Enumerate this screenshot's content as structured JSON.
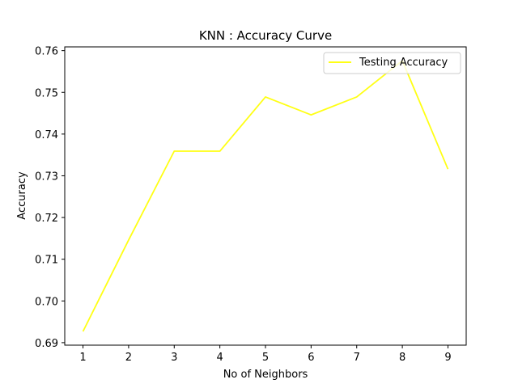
{
  "chart_data": {
    "type": "line",
    "title": "KNN : Accuracy Curve",
    "xlabel": "No of Neighbors",
    "ylabel": "Accuracy",
    "x": [
      1,
      2,
      3,
      4,
      5,
      6,
      7,
      8,
      9
    ],
    "series": [
      {
        "name": "Testing Accuracy",
        "color": "#ffff14",
        "values": [
          0.6927,
          0.7146,
          0.7359,
          0.7359,
          0.7489,
          0.7446,
          0.7489,
          0.7576,
          0.7316
        ]
      }
    ],
    "xlim": [
      0.6,
      9.4
    ],
    "ylim": [
      0.6894,
      0.7609
    ],
    "xticks": [
      "1",
      "2",
      "3",
      "4",
      "5",
      "6",
      "7",
      "8",
      "9"
    ],
    "yticks": [
      "0.69",
      "0.70",
      "0.71",
      "0.72",
      "0.73",
      "0.74",
      "0.75",
      "0.76"
    ],
    "grid": false,
    "legend_position": "top-right"
  }
}
